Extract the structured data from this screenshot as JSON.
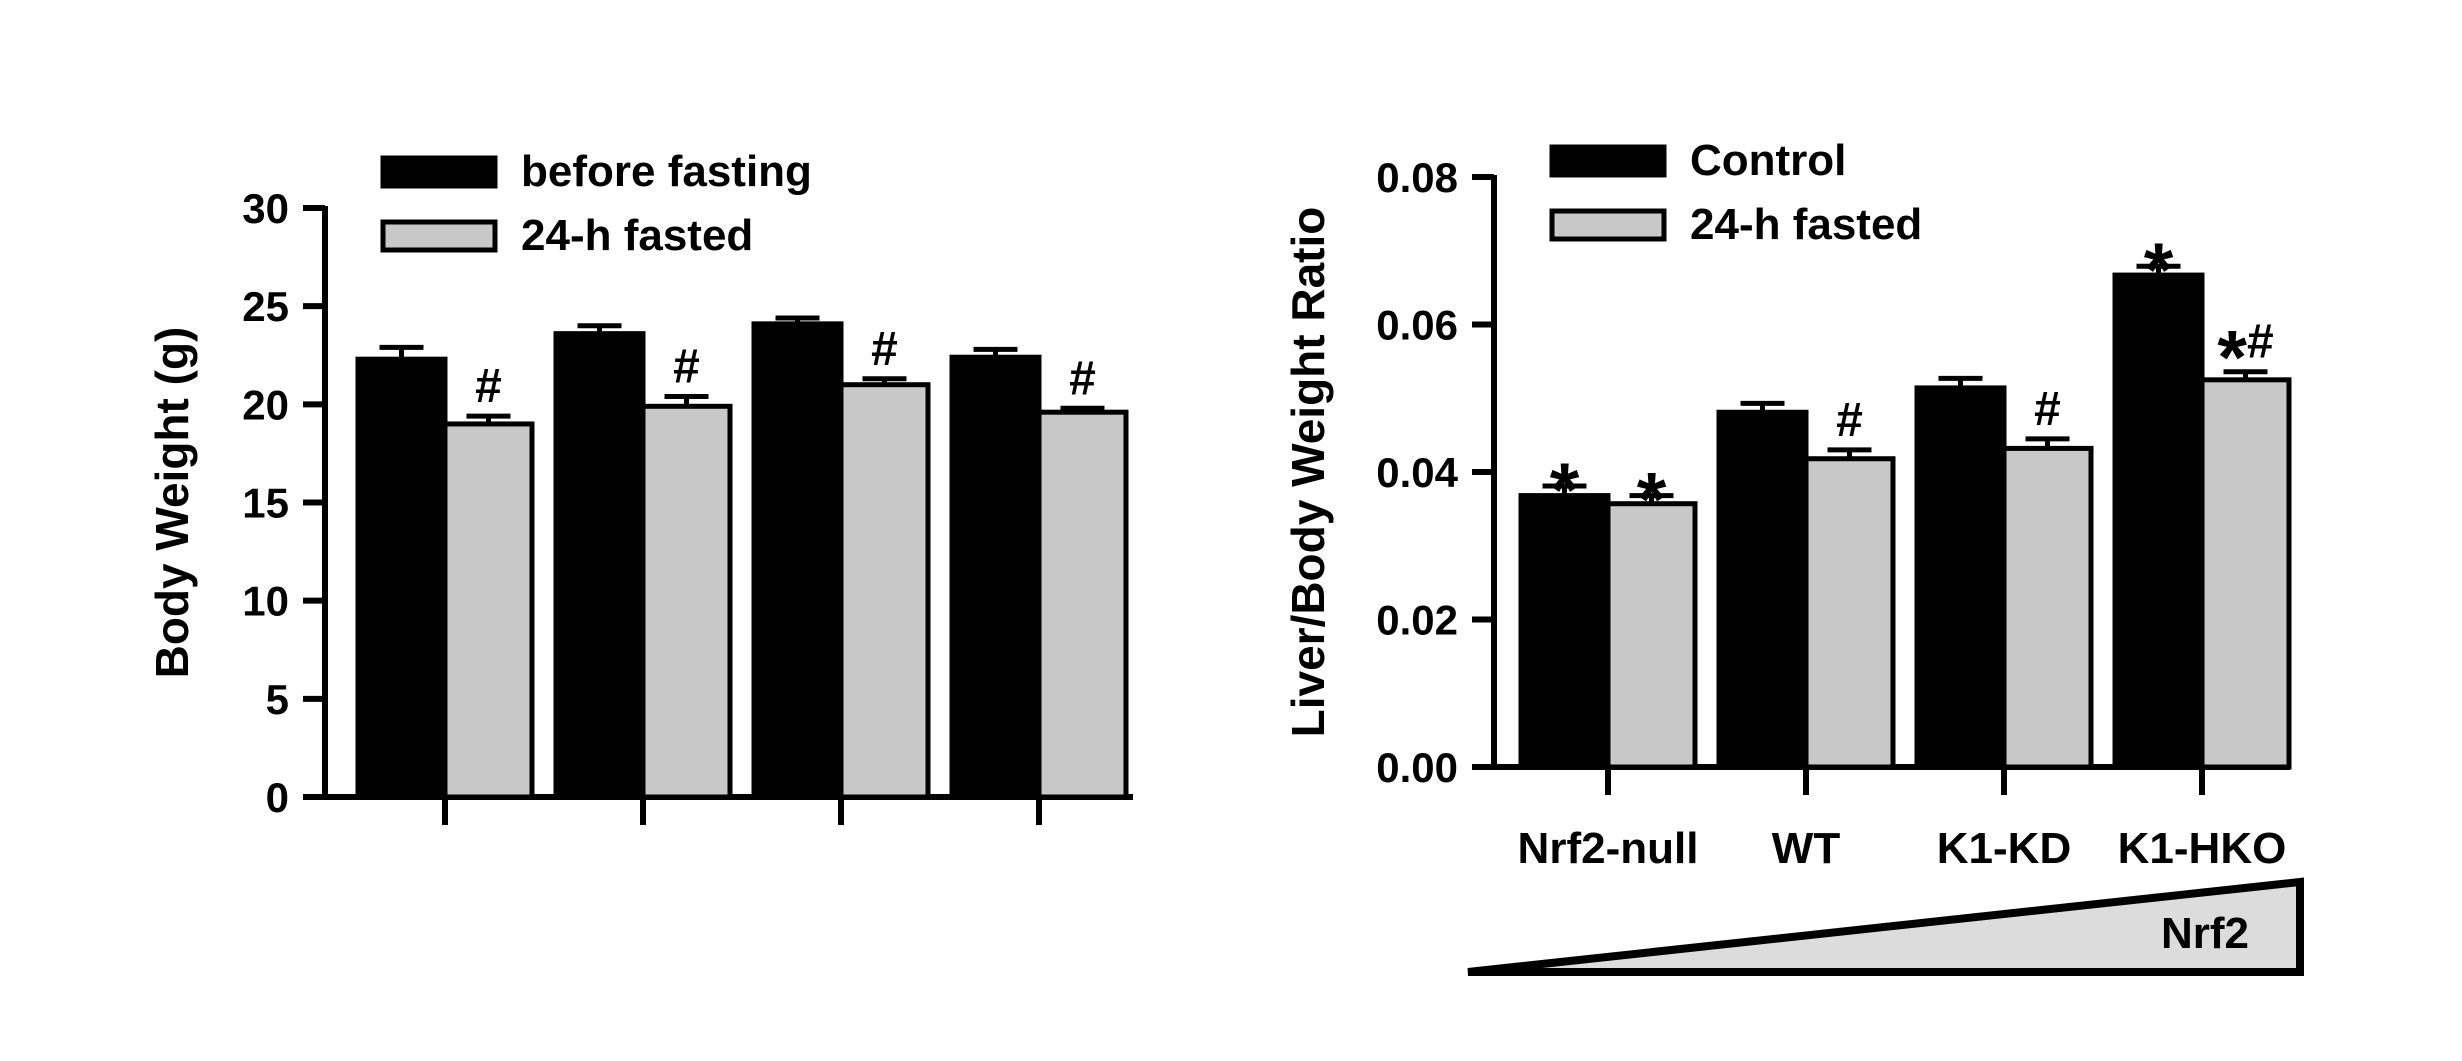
{
  "chart_data": [
    {
      "type": "bar",
      "title": "",
      "xlabel": "",
      "ylabel": "Body Weight (g)",
      "ylim": [
        0,
        30
      ],
      "yticks": [
        "0",
        "5",
        "10",
        "15",
        "20",
        "25",
        "30"
      ],
      "categories": [
        "",
        "",
        "",
        ""
      ],
      "series": [
        {
          "name": "before fasting",
          "values": [
            22.3,
            23.6,
            24.1,
            22.4
          ],
          "errors": [
            0.6,
            0.4,
            0.3,
            0.4
          ],
          "color": "#000000"
        },
        {
          "name": "24-h fasted",
          "values": [
            19.0,
            19.9,
            21.0,
            19.6
          ],
          "errors": [
            0.4,
            0.5,
            0.3,
            0.2
          ],
          "color": "#c8c8c8"
        }
      ],
      "annotations": [
        {
          "category": 0,
          "series": 1,
          "text": "#"
        },
        {
          "category": 1,
          "series": 1,
          "text": "#"
        },
        {
          "category": 2,
          "series": 1,
          "text": "#"
        },
        {
          "category": 3,
          "series": 1,
          "text": "#"
        }
      ],
      "grid": false,
      "legend": "top-left"
    },
    {
      "type": "bar",
      "title": "",
      "xlabel": "",
      "ylabel": "Liver/Body Weight Ratio",
      "ylim": [
        0,
        0.08
      ],
      "yticks": [
        "0.00",
        "0.02",
        "0.04",
        "0.06",
        "0.08"
      ],
      "categories": [
        "Nrf2-null",
        "WT",
        "K1-KD",
        "K1-HKO"
      ],
      "series": [
        {
          "name": "Control",
          "values": [
            0.0368,
            0.0481,
            0.0514,
            0.0667
          ],
          "errors": [
            0.0013,
            0.0012,
            0.0013,
            0.0012
          ],
          "color": "#000000"
        },
        {
          "name": "24-h fasted",
          "values": [
            0.0357,
            0.0418,
            0.0432,
            0.0525
          ],
          "errors": [
            0.0011,
            0.0012,
            0.0013,
            0.0011
          ],
          "color": "#c8c8c8"
        }
      ],
      "annotations": [
        {
          "category": 0,
          "series": 0,
          "text": "*"
        },
        {
          "category": 0,
          "series": 1,
          "text": "*"
        },
        {
          "category": 1,
          "series": 1,
          "text": "#"
        },
        {
          "category": 2,
          "series": 1,
          "text": "#"
        },
        {
          "category": 3,
          "series": 0,
          "text": "*"
        },
        {
          "category": 3,
          "series": 1,
          "text": "*#"
        }
      ],
      "gradient_label": "Nrf2",
      "grid": false,
      "legend": "top-left"
    }
  ]
}
